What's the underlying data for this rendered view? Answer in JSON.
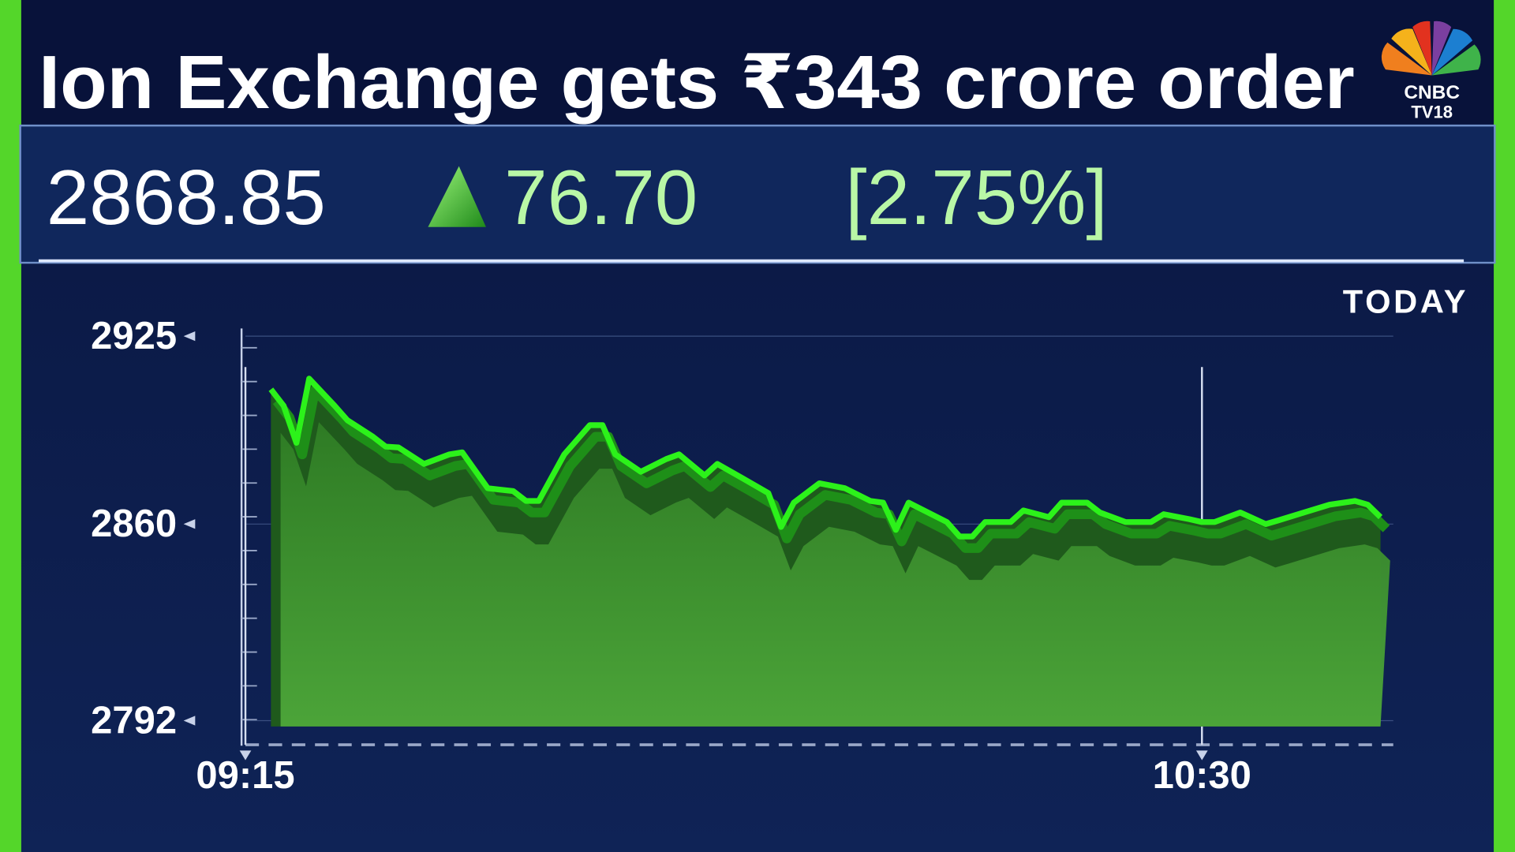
{
  "header": {
    "headline": "Ion Exchange gets ₹343 crore order",
    "price": "2868.85",
    "change": "76.70",
    "change_percent": "[2.75%]",
    "logo": {
      "brand": "CNBC",
      "channel": "TV18"
    }
  },
  "chart_data": {
    "type": "area",
    "title": "TODAY",
    "color": "#2cf21a",
    "fill_color": "#3f9a2c",
    "x": [
      "09:17",
      "09:18",
      "09:19",
      "09:20",
      "09:22",
      "09:23",
      "09:25",
      "09:26",
      "09:27",
      "09:29",
      "09:31",
      "09:32",
      "09:34",
      "09:36",
      "09:37",
      "09:38",
      "09:40",
      "09:42",
      "09:43",
      "09:44",
      "09:46",
      "09:48",
      "09:49",
      "09:51",
      "09:52",
      "09:54",
      "09:56",
      "09:57",
      "09:58",
      "10:00",
      "10:02",
      "10:04",
      "10:05",
      "10:06",
      "10:07",
      "10:10",
      "10:11",
      "10:12",
      "10:13",
      "10:15",
      "10:16",
      "10:18",
      "10:19",
      "10:21",
      "10:22",
      "10:24",
      "10:26",
      "10:27",
      "10:29",
      "10:30",
      "10:31",
      "10:33",
      "10:35",
      "10:36",
      "10:38",
      "10:40",
      "10:42",
      "10:43",
      "10:44"
    ],
    "values": [
      2906.6,
      2900.9,
      2888.1,
      2910.3,
      2900.9,
      2895.9,
      2890.2,
      2886.8,
      2886.5,
      2880.8,
      2884.1,
      2884.8,
      2872.4,
      2871.4,
      2868.0,
      2868.0,
      2884.1,
      2894.2,
      2894.2,
      2884.1,
      2878.1,
      2882.5,
      2884.1,
      2876.8,
      2880.8,
      2875.8,
      2870.7,
      2859.0,
      2867.4,
      2874.1,
      2872.4,
      2868.0,
      2867.4,
      2858.0,
      2867.4,
      2860.7,
      2855.7,
      2855.7,
      2860.7,
      2860.7,
      2864.7,
      2862.4,
      2867.4,
      2867.4,
      2864.0,
      2860.7,
      2860.7,
      2863.4,
      2861.7,
      2860.7,
      2860.7,
      2864.0,
      2860.0,
      2861.3,
      2864.0,
      2866.7,
      2868.0,
      2866.7,
      2862.4
    ],
    "xlim": [
      "09:15",
      "10:45"
    ],
    "xticks": [
      "09:15",
      "10:30"
    ],
    "ylim": [
      2790,
      2925
    ],
    "yticks": [
      2925,
      2860,
      2792
    ],
    "grid": true
  }
}
